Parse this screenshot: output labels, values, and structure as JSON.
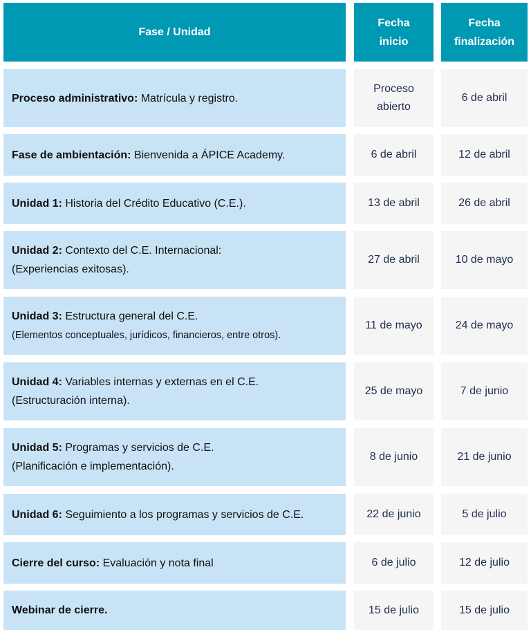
{
  "header": {
    "phase": "Fase / Unidad",
    "start": "Fecha inicio",
    "end": "Fecha finalización"
  },
  "rows": [
    {
      "bold": "Proceso administrativo:",
      "text": " Matrícula y registro.",
      "sub": "",
      "start": "Proceso abierto",
      "end": "6 de abril"
    },
    {
      "bold": "Fase de ambientación:",
      "text": " Bienvenida a ÁPICE Academy.",
      "sub": "",
      "start": "6 de abril",
      "end": "12 de abril"
    },
    {
      "bold": "Unidad 1:",
      "text": " Historia del Crédito Educativo (C.E.).",
      "sub": "",
      "start": "13 de abril",
      "end": "26 de abril"
    },
    {
      "bold": "Unidad 2:",
      "text": " Contexto del C.E. Internacional:",
      "sub": "(Experiencias exitosas).",
      "start": "27 de abril",
      "end": "10 de mayo"
    },
    {
      "bold": "Unidad 3:",
      "text": " Estructura general del C.E.",
      "sub": "(Elementos conceptuales, jurídicos, financieros, entre otros).",
      "start": "11 de mayo",
      "end": "24 de mayo"
    },
    {
      "bold": "Unidad 4:",
      "text": " Variables internas y externas en el C.E.",
      "sub": "(Estructuración interna).",
      "start": "25 de mayo",
      "end": "7 de junio"
    },
    {
      "bold": "Unidad 5:",
      "text": " Programas y servicios de C.E.",
      "sub": "(Planificación e implementación).",
      "start": "8 de junio",
      "end": "21 de junio"
    },
    {
      "bold": "Unidad 6:",
      "text": " Seguimiento a los programas y servicios de C.E.",
      "sub": "",
      "start": "22 de junio",
      "end": "5 de julio"
    },
    {
      "bold": "Cierre del curso:",
      "text": " Evaluación y nota final",
      "sub": "",
      "start": "6 de julio",
      "end": "12 de julio"
    },
    {
      "bold": "Webinar de cierre.",
      "text": "",
      "sub": "",
      "start": "15 de julio",
      "end": "15 de julio"
    }
  ],
  "colors": {
    "header": "#0099b4",
    "phase_cell": "#c9e3f6",
    "date_cell": "#f5f5f5"
  }
}
